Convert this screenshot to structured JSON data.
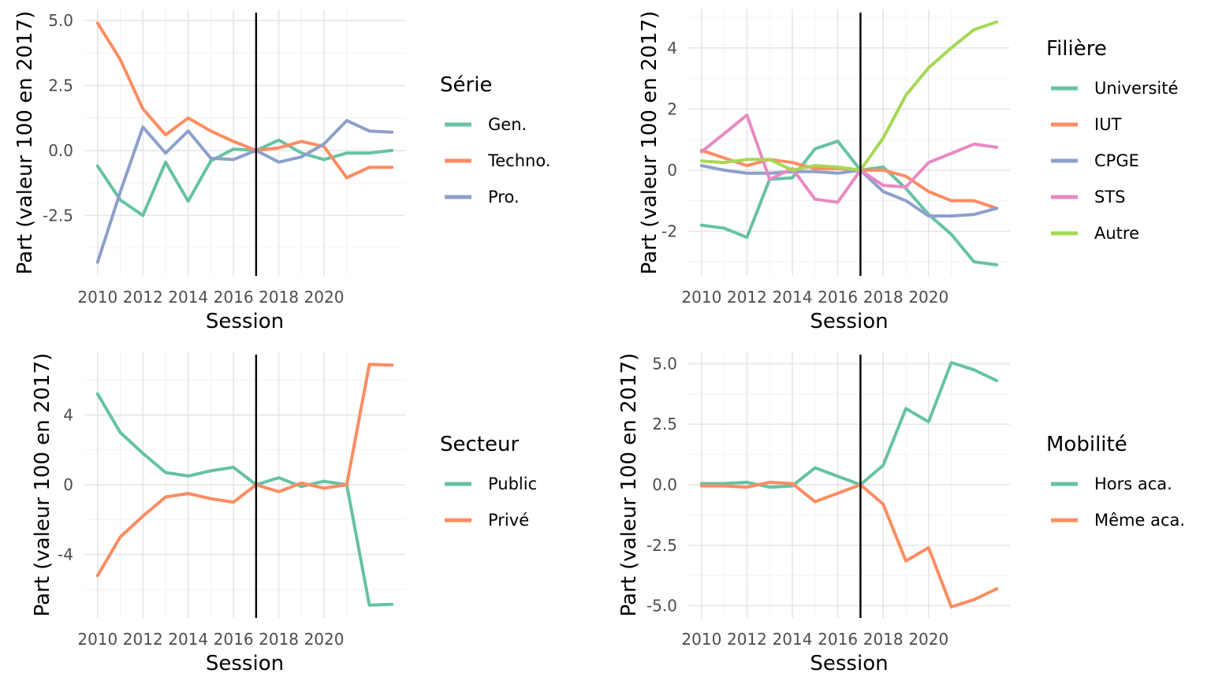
{
  "chart_data": [
    {
      "type": "line",
      "xlabel": "Session",
      "ylabel": "Part (valeur 100 en 2017)",
      "xlim": [
        2010,
        2023
      ],
      "ylim": [
        -4.4,
        5.0
      ],
      "x_ticks": [
        2010,
        2012,
        2014,
        2016,
        2018,
        2020
      ],
      "y_ticks": [
        -2.5,
        0.0,
        2.5,
        5.0
      ],
      "y_tick_labels": [
        "-2.5",
        "0.0",
        "2.5",
        "5.0"
      ],
      "reference_x": 2017,
      "legend_title": "Série",
      "legend_position": "right",
      "x": [
        2010,
        2011,
        2012,
        2013,
        2014,
        2015,
        2016,
        2017,
        2018,
        2019,
        2020,
        2021,
        2022,
        2023
      ],
      "series": [
        {
          "name": "Gen.",
          "color": "#66c2a5",
          "values": [
            -0.6,
            -1.9,
            -2.5,
            -0.45,
            -1.95,
            -0.4,
            0.05,
            0.0,
            0.4,
            -0.1,
            -0.35,
            -0.1,
            -0.1,
            0.0
          ]
        },
        {
          "name": "Techno.",
          "color": "#fc8d62",
          "values": [
            4.9,
            3.5,
            1.6,
            0.6,
            1.25,
            0.75,
            0.35,
            0.0,
            0.1,
            0.35,
            0.15,
            -1.05,
            -0.65,
            -0.65
          ]
        },
        {
          "name": "Pro.",
          "color": "#8da0cb",
          "values": [
            -4.3,
            -1.6,
            0.9,
            -0.1,
            0.75,
            -0.3,
            -0.35,
            0.0,
            -0.45,
            -0.25,
            0.25,
            1.15,
            0.75,
            0.7
          ]
        }
      ]
    },
    {
      "type": "line",
      "xlabel": "Session",
      "ylabel": "Part (valeur 100 en 2017)",
      "xlim": [
        2010,
        2023
      ],
      "ylim": [
        -3.1,
        4.9
      ],
      "x_ticks": [
        2010,
        2012,
        2014,
        2016,
        2018,
        2020
      ],
      "y_ticks": [
        -2,
        0,
        2,
        4
      ],
      "y_tick_labels": [
        "-2",
        "0",
        "2",
        "4"
      ],
      "reference_x": 2017,
      "legend_title": "Filière",
      "legend_position": "right",
      "x": [
        2010,
        2011,
        2012,
        2013,
        2014,
        2015,
        2016,
        2017,
        2018,
        2019,
        2020,
        2021,
        2022,
        2023
      ],
      "series": [
        {
          "name": "Université",
          "color": "#66c2a5",
          "values": [
            -1.8,
            -1.9,
            -2.2,
            -0.3,
            -0.25,
            0.7,
            0.95,
            0.0,
            0.1,
            -0.6,
            -1.45,
            -2.1,
            -3.0,
            -3.1
          ]
        },
        {
          "name": "IUT",
          "color": "#fc8d62",
          "values": [
            0.65,
            0.4,
            0.15,
            0.35,
            0.25,
            0.05,
            0.05,
            0.0,
            0.0,
            -0.2,
            -0.7,
            -1.0,
            -1.0,
            -1.25
          ]
        },
        {
          "name": "CPGE",
          "color": "#8da0cb",
          "values": [
            0.15,
            0.0,
            -0.1,
            -0.1,
            -0.05,
            -0.05,
            -0.1,
            0.0,
            -0.7,
            -1.0,
            -1.5,
            -1.5,
            -1.45,
            -1.25
          ]
        },
        {
          "name": "STS",
          "color": "#e78ac3",
          "values": [
            0.6,
            1.2,
            1.8,
            -0.3,
            0.05,
            -0.95,
            -1.05,
            0.0,
            -0.5,
            -0.55,
            0.25,
            0.55,
            0.85,
            0.75
          ]
        },
        {
          "name": "Autre",
          "color": "#a6d854",
          "values": [
            0.3,
            0.25,
            0.35,
            0.35,
            0.0,
            0.15,
            0.1,
            0.0,
            1.05,
            2.45,
            3.35,
            4.0,
            4.6,
            4.85
          ]
        }
      ]
    },
    {
      "type": "line",
      "xlabel": "Session",
      "ylabel": "Part (valeur 100 en 2017)",
      "xlim": [
        2010,
        2023
      ],
      "ylim": [
        -7.0,
        7.0
      ],
      "x_ticks": [
        2010,
        2012,
        2014,
        2016,
        2018,
        2020
      ],
      "y_ticks": [
        -4,
        0,
        4
      ],
      "y_tick_labels": [
        "-4",
        "0",
        "4"
      ],
      "reference_x": 2017,
      "legend_title": "Secteur",
      "legend_position": "right",
      "x": [
        2010,
        2011,
        2012,
        2013,
        2014,
        2015,
        2016,
        2017,
        2018,
        2019,
        2020,
        2021,
        2022,
        2023
      ],
      "series": [
        {
          "name": "Public",
          "color": "#66c2a5",
          "values": [
            5.2,
            3.0,
            1.8,
            0.7,
            0.5,
            0.8,
            1.0,
            0.0,
            0.4,
            -0.1,
            0.2,
            0.0,
            -6.9,
            -6.85
          ]
        },
        {
          "name": "Privé",
          "color": "#fc8d62",
          "values": [
            -5.2,
            -3.0,
            -1.8,
            -0.7,
            -0.5,
            -0.8,
            -1.0,
            0.0,
            -0.4,
            0.1,
            -0.2,
            0.0,
            6.9,
            6.85
          ]
        }
      ]
    },
    {
      "type": "line",
      "xlabel": "Session",
      "ylabel": "Part (valeur 100 en 2017)",
      "xlim": [
        2010,
        2023
      ],
      "ylim": [
        -5.05,
        5.05
      ],
      "x_ticks": [
        2010,
        2012,
        2014,
        2016,
        2018,
        2020
      ],
      "y_ticks": [
        -5.0,
        -2.5,
        0.0,
        2.5,
        5.0
      ],
      "y_tick_labels": [
        "-5.0",
        "-2.5",
        "0.0",
        "2.5",
        "5.0"
      ],
      "reference_x": 2017,
      "legend_title": "Mobilité",
      "legend_position": "right",
      "x": [
        2010,
        2011,
        2012,
        2013,
        2014,
        2015,
        2016,
        2017,
        2018,
        2019,
        2020,
        2021,
        2022,
        2023
      ],
      "series": [
        {
          "name": "Hors aca.",
          "color": "#66c2a5",
          "values": [
            0.05,
            0.05,
            0.1,
            -0.1,
            -0.05,
            0.7,
            0.35,
            0.0,
            0.8,
            3.15,
            2.6,
            5.05,
            4.75,
            4.3
          ]
        },
        {
          "name": "Même aca.",
          "color": "#fc8d62",
          "values": [
            -0.05,
            -0.05,
            -0.1,
            0.1,
            0.05,
            -0.7,
            -0.35,
            0.0,
            -0.8,
            -3.15,
            -2.6,
            -5.05,
            -4.75,
            -4.3
          ]
        }
      ]
    }
  ]
}
